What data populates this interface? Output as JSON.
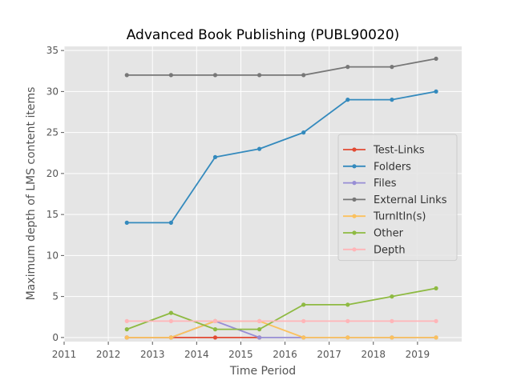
{
  "chart_data": {
    "type": "line",
    "title": "Advanced Book Publishing (PUBL90020)",
    "xlabel": "Time Period",
    "ylabel": "Maximum depth of LMS content items",
    "xlim": [
      2011,
      2020
    ],
    "ylim": [
      -0.5,
      35.5
    ],
    "xticks": [
      2011,
      2012,
      2013,
      2014,
      2015,
      2016,
      2017,
      2018,
      2019
    ],
    "yticks": [
      0,
      5,
      10,
      15,
      20,
      25,
      30,
      35
    ],
    "grid": true,
    "legend_position": "center-right",
    "series": [
      {
        "name": "Test-Links",
        "color": "#E24A33",
        "x": [
          2012.42,
          2013.42,
          2014.42,
          2015.42
        ],
        "values": [
          0,
          0,
          0,
          0
        ]
      },
      {
        "name": "Folders",
        "color": "#348ABD",
        "x": [
          2012.42,
          2013.42,
          2014.42,
          2015.42,
          2016.42,
          2017.42,
          2018.42,
          2019.42
        ],
        "values": [
          14,
          14,
          22,
          23,
          25,
          29,
          29,
          30
        ]
      },
      {
        "name": "Files",
        "color": "#988ED5",
        "x": [
          2012.42,
          2013.42,
          2014.42,
          2015.42,
          2016.42,
          2017.42,
          2018.42,
          2019.42
        ],
        "values": [
          0,
          0,
          2,
          0,
          0,
          0,
          0,
          0
        ]
      },
      {
        "name": "External Links",
        "color": "#777777",
        "x": [
          2012.42,
          2013.42,
          2014.42,
          2015.42,
          2016.42,
          2017.42,
          2018.42,
          2019.42
        ],
        "values": [
          32,
          32,
          32,
          32,
          32,
          33,
          33,
          34
        ]
      },
      {
        "name": "TurnItIn(s)",
        "color": "#FBC15E",
        "x": [
          2012.42,
          2013.42,
          2014.42,
          2015.42,
          2016.42,
          2017.42,
          2018.42,
          2019.42
        ],
        "values": [
          0,
          0,
          2,
          2,
          0,
          0,
          0,
          0
        ]
      },
      {
        "name": "Other",
        "color": "#8EBA42",
        "x": [
          2012.42,
          2013.42,
          2014.42,
          2015.42,
          2016.42,
          2017.42,
          2018.42,
          2019.42
        ],
        "values": [
          1,
          3,
          1,
          1,
          4,
          4,
          5,
          6
        ]
      },
      {
        "name": "Depth",
        "color": "#FFB5B8",
        "x": [
          2012.42,
          2013.42,
          2014.42,
          2015.42,
          2016.42,
          2017.42,
          2018.42,
          2019.42
        ],
        "values": [
          2,
          2,
          2,
          2,
          2,
          2,
          2,
          2
        ]
      }
    ]
  }
}
